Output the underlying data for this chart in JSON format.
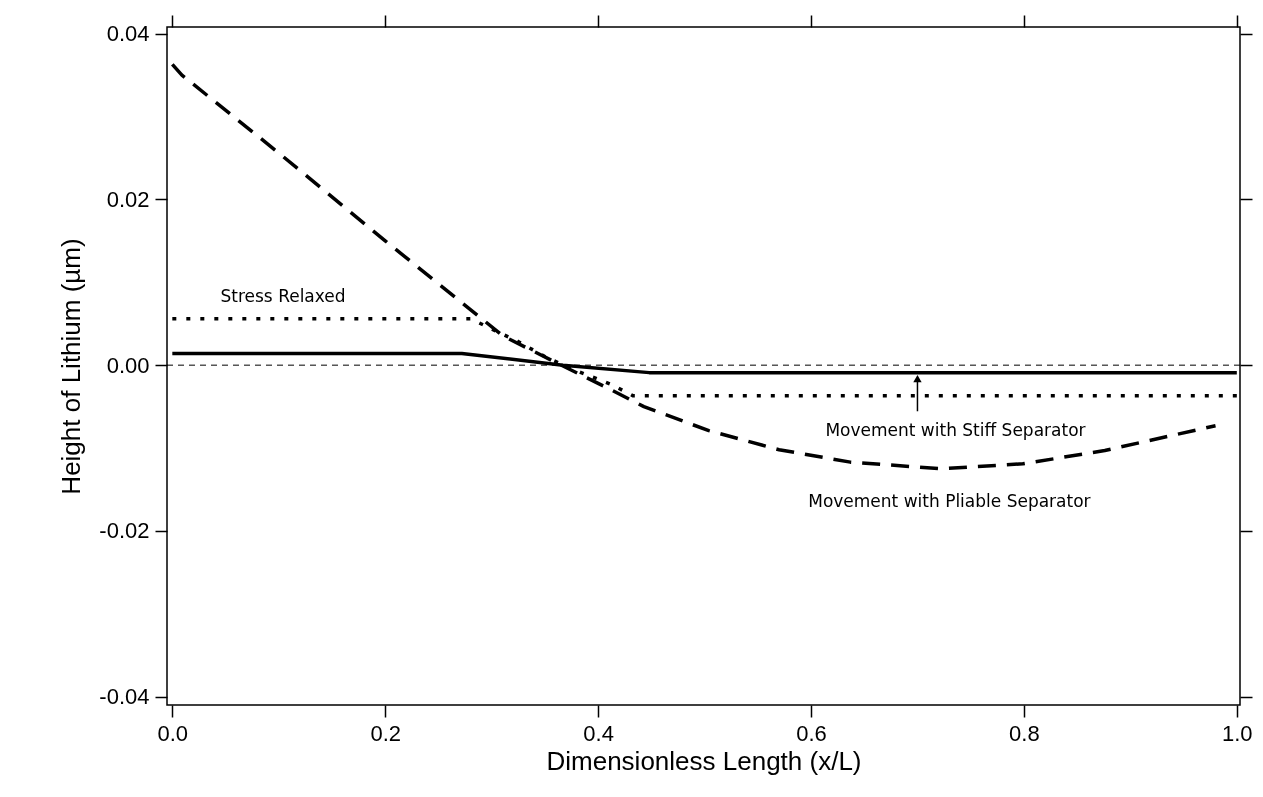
{
  "chart_data": {
    "type": "line",
    "xlabel": "Dimensionless Length (x/L)",
    "ylabel": "Height of Lithium (µm)",
    "xlim": [
      -0.005,
      1.003
    ],
    "ylim": [
      -0.041,
      0.0408
    ],
    "xticks": [
      {
        "value": 0,
        "label": "0.0"
      },
      0.2,
      0.4,
      0.6,
      0.8,
      {
        "value": 1,
        "label": "1.0"
      }
    ],
    "yticks": [
      -0.04,
      -0.02,
      {
        "value": 0,
        "label": "0.00"
      },
      0.02,
      0.04
    ],
    "grid": false,
    "marker": "none",
    "series": [
      {
        "color": "#000000",
        "line_style": "dashed",
        "x": [
          0.0,
          0.009,
          0.1,
          0.2,
          0.311,
          0.367,
          0.408,
          0.443,
          0.504,
          0.57,
          0.637,
          0.723,
          0.799,
          0.876,
          0.98
        ],
        "values": [
          0.0363,
          0.035,
          0.0256,
          0.015,
          0.0035,
          -0.0001,
          -0.0027,
          -0.005,
          -0.0079,
          -0.0102,
          -0.0117,
          -0.0125,
          -0.0119,
          -0.0103,
          -0.0073
        ]
      },
      {
        "color": "#000000",
        "line_style": "dotted",
        "x": [
          0.0,
          0.28,
          0.324,
          0.352,
          0.382,
          0.412,
          0.433,
          1.0
        ],
        "values": [
          0.0056,
          0.0056,
          0.0029,
          0.0009,
          -0.0008,
          -0.0023,
          -0.0037,
          -0.0037
        ]
      },
      {
        "color": "#000000",
        "line_style": "solid",
        "x": [
          0.0,
          0.272,
          0.367,
          0.448,
          1.0
        ],
        "values": [
          0.0014,
          0.0014,
          0.0,
          -0.0009,
          -0.0009
        ]
      }
    ],
    "ref_lines": [
      {
        "axis": "y",
        "value": 0,
        "color": "#000000",
        "line_style": "dashed"
      }
    ],
    "annotations": [
      {
        "text": "Stress Relaxed",
        "x": 0.104,
        "y": 0.0056
      },
      {
        "text": "Movement with Stiff Separator",
        "x": 0.7,
        "y": -0.0009
      },
      {
        "text": "Movement with Pliable Separator",
        "x": 0.73,
        "y": -0.0125
      }
    ]
  }
}
